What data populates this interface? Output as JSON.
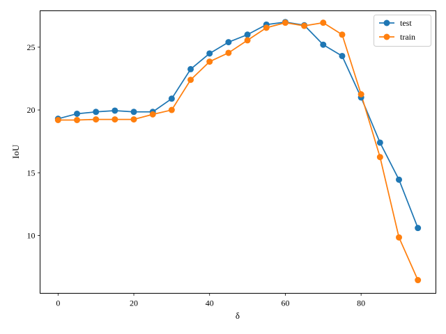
{
  "chart_data": {
    "type": "line",
    "xlabel": "δ",
    "ylabel": "IoU",
    "xlim": [
      -4.75,
      99.75
    ],
    "ylim": [
      5.4,
      27.9
    ],
    "x_ticks": [
      0,
      20,
      40,
      60,
      80
    ],
    "y_ticks": [
      10,
      15,
      20,
      25
    ],
    "legend_position": "top-right",
    "grid": false,
    "x": [
      0,
      5,
      10,
      15,
      20,
      25,
      30,
      35,
      40,
      45,
      50,
      55,
      60,
      65,
      70,
      75,
      80,
      85,
      90,
      95
    ],
    "series": [
      {
        "name": "test",
        "color": "#1f77b4",
        "marker": "circle",
        "values": [
          19.3,
          19.7,
          19.85,
          19.95,
          19.85,
          19.85,
          20.9,
          23.25,
          24.5,
          25.4,
          26.0,
          26.8,
          27.0,
          26.75,
          25.2,
          24.3,
          21.0,
          17.4,
          14.45,
          10.6
        ]
      },
      {
        "name": "train",
        "color": "#ff7f0e",
        "marker": "circle",
        "values": [
          19.2,
          19.2,
          19.25,
          19.25,
          19.25,
          19.65,
          20.0,
          22.4,
          23.85,
          24.55,
          25.55,
          26.55,
          26.95,
          26.7,
          26.95,
          26.0,
          21.25,
          16.25,
          9.85,
          6.45
        ]
      }
    ]
  }
}
